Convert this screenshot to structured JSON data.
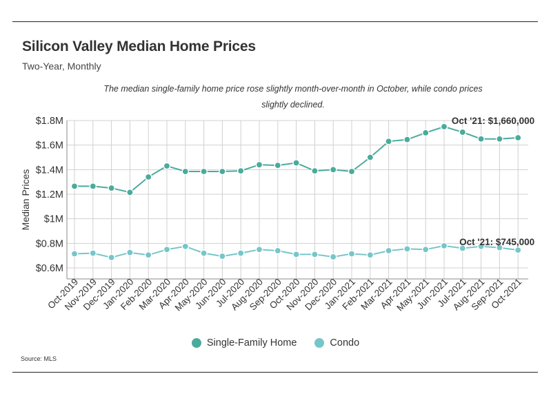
{
  "title": "Silicon Valley Median Home Prices",
  "subtitle": "Two-Year, Monthly",
  "note": "The median single-family home price rose slightly month-over-month in October, while condo prices slightly declined.",
  "source": "Source:  MLS",
  "colors": {
    "single_family": "#4aab9c",
    "condo": "#76c6c9",
    "grid": "#d0d0d0"
  },
  "chart_data": {
    "type": "line",
    "ylabel": "Median Prices",
    "xlabel": "",
    "ylim": [
      0.55,
      1.8
    ],
    "y_ticks": [
      {
        "value": 0.6,
        "label": "$0.6M"
      },
      {
        "value": 0.8,
        "label": "$0.8M"
      },
      {
        "value": 1.0,
        "label": "$1M"
      },
      {
        "value": 1.2,
        "label": "$1.2M"
      },
      {
        "value": 1.4,
        "label": "$1.4M"
      },
      {
        "value": 1.6,
        "label": "$1.6M"
      },
      {
        "value": 1.8,
        "label": "$1.8M"
      }
    ],
    "categories": [
      "Oct-2019",
      "Nov-2019",
      "Dec-2019",
      "Jan-2020",
      "Feb-2020",
      "Mar-2020",
      "Apr-2020",
      "May-2020",
      "Jun-2020",
      "Jul-2020",
      "Aug-2020",
      "Sep-2020",
      "Oct-2020",
      "Nov-2020",
      "Dec-2020",
      "Jan-2021",
      "Feb-2021",
      "Mar-2021",
      "Apr-2021",
      "May-2021",
      "Jun-2021",
      "Jul-2021",
      "Aug-2021",
      "Sep-2021",
      "Oct-2021"
    ],
    "series": [
      {
        "name": "Single-Family Home",
        "color_key": "single_family",
        "values": [
          1.265,
          1.265,
          1.25,
          1.215,
          1.34,
          1.43,
          1.385,
          1.385,
          1.385,
          1.39,
          1.44,
          1.435,
          1.455,
          1.39,
          1.4,
          1.385,
          1.5,
          1.63,
          1.645,
          1.7,
          1.75,
          1.705,
          1.65,
          1.65,
          1.66
        ]
      },
      {
        "name": "Condo",
        "color_key": "condo",
        "values": [
          0.715,
          0.72,
          0.685,
          0.725,
          0.705,
          0.75,
          0.775,
          0.72,
          0.695,
          0.72,
          0.75,
          0.74,
          0.71,
          0.71,
          0.69,
          0.715,
          0.705,
          0.74,
          0.755,
          0.75,
          0.78,
          0.76,
          0.775,
          0.765,
          0.745
        ]
      }
    ],
    "annotations": [
      {
        "series": 0,
        "index": 24,
        "text": "Oct '21: $1,660,000"
      },
      {
        "series": 1,
        "index": 24,
        "text": "Oct '21: $745,000"
      }
    ],
    "grid": true,
    "legend": "bottom-center"
  }
}
